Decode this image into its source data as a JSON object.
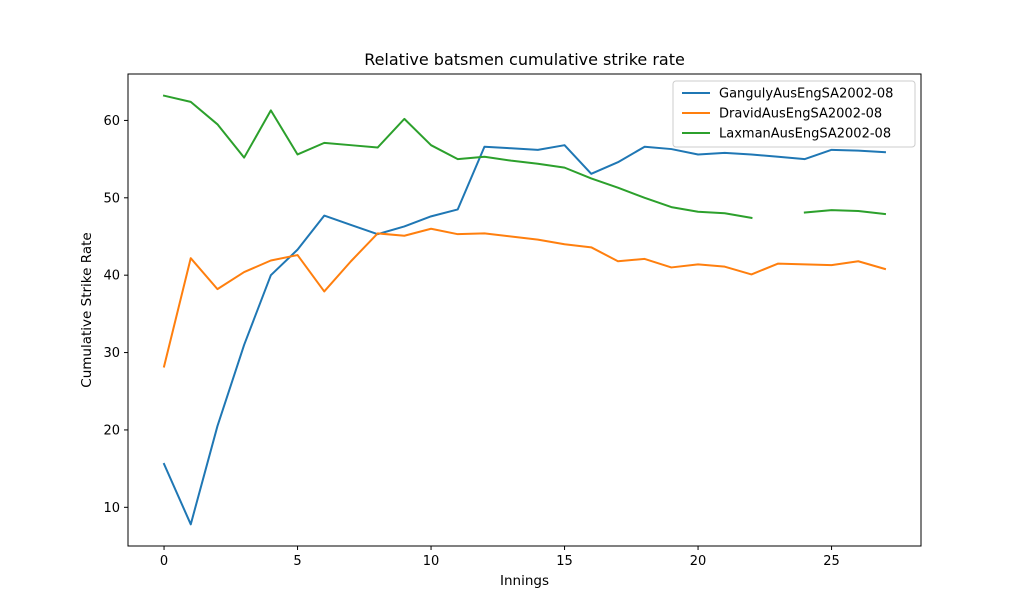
{
  "chart_data": {
    "type": "line",
    "title": "Relative batsmen cumulative strike rate",
    "xlabel": "Innings",
    "ylabel": "Cumulative Strike Rate",
    "xlim": [
      -1.35,
      28.35
    ],
    "ylim": [
      5.0,
      66.0
    ],
    "xticks": [
      0,
      5,
      10,
      15,
      20,
      25
    ],
    "yticks": [
      10,
      20,
      30,
      40,
      50,
      60
    ],
    "grid": false,
    "legend_position": "top-right",
    "series": [
      {
        "name": "GangulyAusEngSA2002-08",
        "color": "#1f77b4",
        "x": [
          0,
          1,
          2,
          3,
          4,
          5,
          6,
          7,
          8,
          9,
          10,
          11,
          12,
          13,
          14,
          15,
          16,
          17,
          18,
          19,
          20,
          21,
          22,
          23,
          24,
          25,
          26,
          27
        ],
        "y": [
          15.6,
          7.8,
          20.5,
          31.0,
          40.0,
          43.3,
          47.7,
          46.5,
          45.3,
          46.3,
          47.6,
          48.5,
          56.6,
          56.4,
          56.2,
          56.8,
          53.1,
          54.6,
          56.6,
          56.3,
          55.6,
          55.8,
          55.6,
          55.3,
          55.0,
          56.2,
          56.1,
          55.9
        ]
      },
      {
        "name": "DravidAusEngSA2002-08",
        "color": "#ff7f0e",
        "x": [
          0,
          1,
          2,
          3,
          4,
          5,
          6,
          7,
          8,
          9,
          10,
          11,
          12,
          13,
          14,
          15,
          16,
          17,
          18,
          19,
          20,
          21,
          22,
          23,
          24,
          25,
          26,
          27
        ],
        "y": [
          28.2,
          42.2,
          38.2,
          40.4,
          41.9,
          42.6,
          37.9,
          41.8,
          45.4,
          45.1,
          46.0,
          45.3,
          45.4,
          45.0,
          44.6,
          44.0,
          43.6,
          41.8,
          42.1,
          41.0,
          41.4,
          41.1,
          40.1,
          41.5,
          41.4,
          41.3,
          41.8,
          40.8
        ]
      },
      {
        "name": "LaxmanAusEngSA2002-08",
        "color": "#2ca02c",
        "x": [
          0,
          1,
          2,
          3,
          4,
          5,
          6,
          7,
          8,
          9,
          10,
          11,
          12,
          13,
          14,
          15,
          16,
          17,
          18,
          19,
          20,
          21,
          22,
          23,
          24,
          25,
          26,
          27
        ],
        "y": [
          63.2,
          62.4,
          59.5,
          55.2,
          61.3,
          55.6,
          57.1,
          56.8,
          56.5,
          60.2,
          56.8,
          55.0,
          55.3,
          54.8,
          54.4,
          53.9,
          52.5,
          51.3,
          50.0,
          48.8,
          48.2,
          48.0,
          47.4,
          null,
          48.1,
          48.4,
          48.3,
          47.9
        ]
      }
    ]
  }
}
